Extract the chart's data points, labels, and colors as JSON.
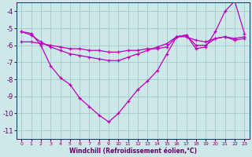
{
  "xlabel": "Windchill (Refroidissement éolien,°C)",
  "background_color": "#cde8e8",
  "grid_color": "#a8cccc",
  "line_color": "#bb00bb",
  "x": [
    0,
    1,
    2,
    3,
    4,
    5,
    6,
    7,
    8,
    9,
    10,
    11,
    12,
    13,
    14,
    15,
    16,
    17,
    18,
    19,
    20,
    21,
    22,
    23
  ],
  "line1": [
    -5.2,
    -5.3,
    -6.0,
    -7.2,
    -7.9,
    -8.3,
    -9.1,
    -9.6,
    -10.1,
    -10.5,
    -10.0,
    -9.3,
    -8.6,
    -8.1,
    -7.5,
    -6.5,
    -5.5,
    -5.4,
    -6.2,
    -6.1,
    -5.2,
    -4.0,
    -3.4,
    -5.3
  ],
  "line2": [
    -5.8,
    -5.8,
    -5.9,
    -6.0,
    -6.1,
    -6.2,
    -6.2,
    -6.3,
    -6.3,
    -6.4,
    -6.4,
    -6.3,
    -6.3,
    -6.2,
    -6.2,
    -6.1,
    -5.5,
    -5.5,
    -5.7,
    -5.8,
    -5.6,
    -5.5,
    -5.7,
    -5.6
  ],
  "line3": [
    -5.2,
    -5.4,
    -5.8,
    -6.1,
    -6.3,
    -6.5,
    -6.6,
    -6.7,
    -6.8,
    -6.9,
    -6.9,
    -6.7,
    -6.5,
    -6.3,
    -6.1,
    -5.9,
    -5.5,
    -5.4,
    -6.0,
    -6.0,
    -5.6,
    -5.5,
    -5.6,
    -5.5
  ],
  "ylim": [
    -11.5,
    -3.5
  ],
  "xlim": [
    -0.5,
    23.5
  ],
  "yticks": [
    -11,
    -10,
    -9,
    -8,
    -7,
    -6,
    -5,
    -4
  ],
  "xticks": [
    0,
    1,
    2,
    3,
    4,
    5,
    6,
    7,
    8,
    9,
    10,
    11,
    12,
    13,
    14,
    15,
    16,
    17,
    18,
    19,
    20,
    21,
    22,
    23
  ]
}
